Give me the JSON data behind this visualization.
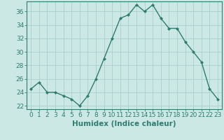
{
  "x": [
    0,
    1,
    2,
    3,
    4,
    5,
    6,
    7,
    8,
    9,
    10,
    11,
    12,
    13,
    14,
    15,
    16,
    17,
    18,
    19,
    20,
    21,
    22,
    23
  ],
  "y": [
    24.5,
    25.5,
    24.0,
    24.0,
    23.5,
    23.0,
    22.0,
    23.5,
    26.0,
    29.0,
    32.0,
    35.0,
    35.5,
    37.0,
    36.0,
    37.0,
    35.0,
    33.5,
    33.5,
    31.5,
    30.0,
    28.5,
    24.5,
    23.0
  ],
  "xlabel": "Humidex (Indice chaleur)",
  "ylim": [
    21.5,
    37.5
  ],
  "xlim": [
    -0.5,
    23.5
  ],
  "yticks": [
    22,
    24,
    26,
    28,
    30,
    32,
    34,
    36
  ],
  "xticks": [
    0,
    1,
    2,
    3,
    4,
    5,
    6,
    7,
    8,
    9,
    10,
    11,
    12,
    13,
    14,
    15,
    16,
    17,
    18,
    19,
    20,
    21,
    22,
    23
  ],
  "line_color": "#2e7d6e",
  "marker": "D",
  "marker_size": 2.0,
  "line_width": 1.0,
  "bg_color": "#cce8e4",
  "grid_color": "#aacfcb",
  "axis_color": "#2e7d6e",
  "label_color": "#2e7d6e",
  "tick_label_fontsize": 6.5,
  "xlabel_fontsize": 7.5
}
